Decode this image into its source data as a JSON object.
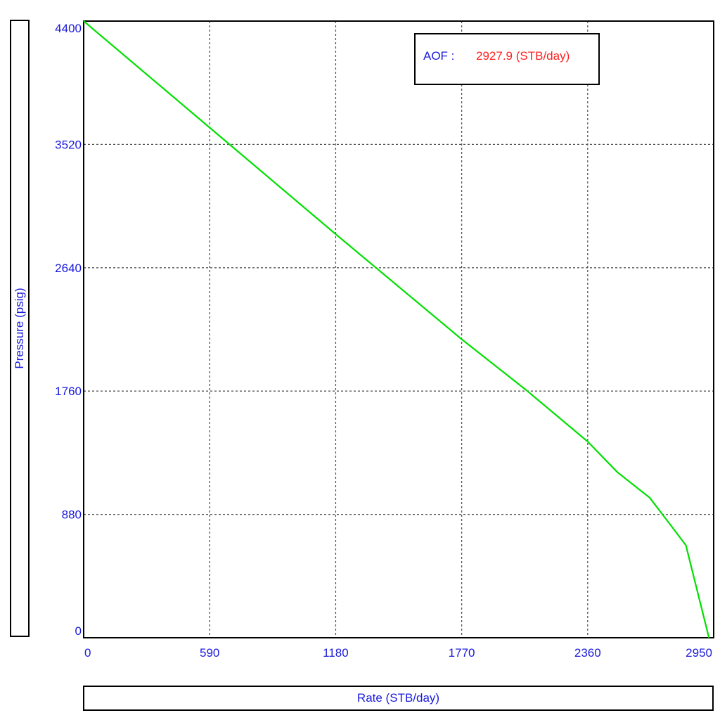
{
  "chart_data": {
    "type": "line",
    "title": "",
    "xlabel": "Rate  (STB/day)",
    "ylabel": "Pressure  (psig)",
    "xlim": [
      0,
      2950
    ],
    "ylim": [
      0,
      4400
    ],
    "xticks": [
      0,
      590,
      1180,
      1770,
      2360,
      2950
    ],
    "yticks": [
      0,
      880,
      1760,
      2640,
      3520,
      4400
    ],
    "grid": true,
    "series": [
      {
        "color": "#00e000",
        "points": [
          [
            0,
            4400
          ],
          [
            590,
            3640
          ],
          [
            1180,
            2880
          ],
          [
            1770,
            2130
          ],
          [
            2070,
            1770
          ],
          [
            2360,
            1400
          ],
          [
            2500,
            1180
          ],
          [
            2650,
            1000
          ],
          [
            2750,
            800
          ],
          [
            2820,
            660
          ],
          [
            2927.9,
            0
          ]
        ]
      }
    ],
    "annotation": {
      "label": "AOF :",
      "value": "2927.9 (STB/day)",
      "placement": "top-right"
    }
  },
  "colors": {
    "axis_text": "#1a1adb",
    "curve": "#00e000",
    "annotation_value": "#ff2020",
    "grid": "#555555"
  }
}
